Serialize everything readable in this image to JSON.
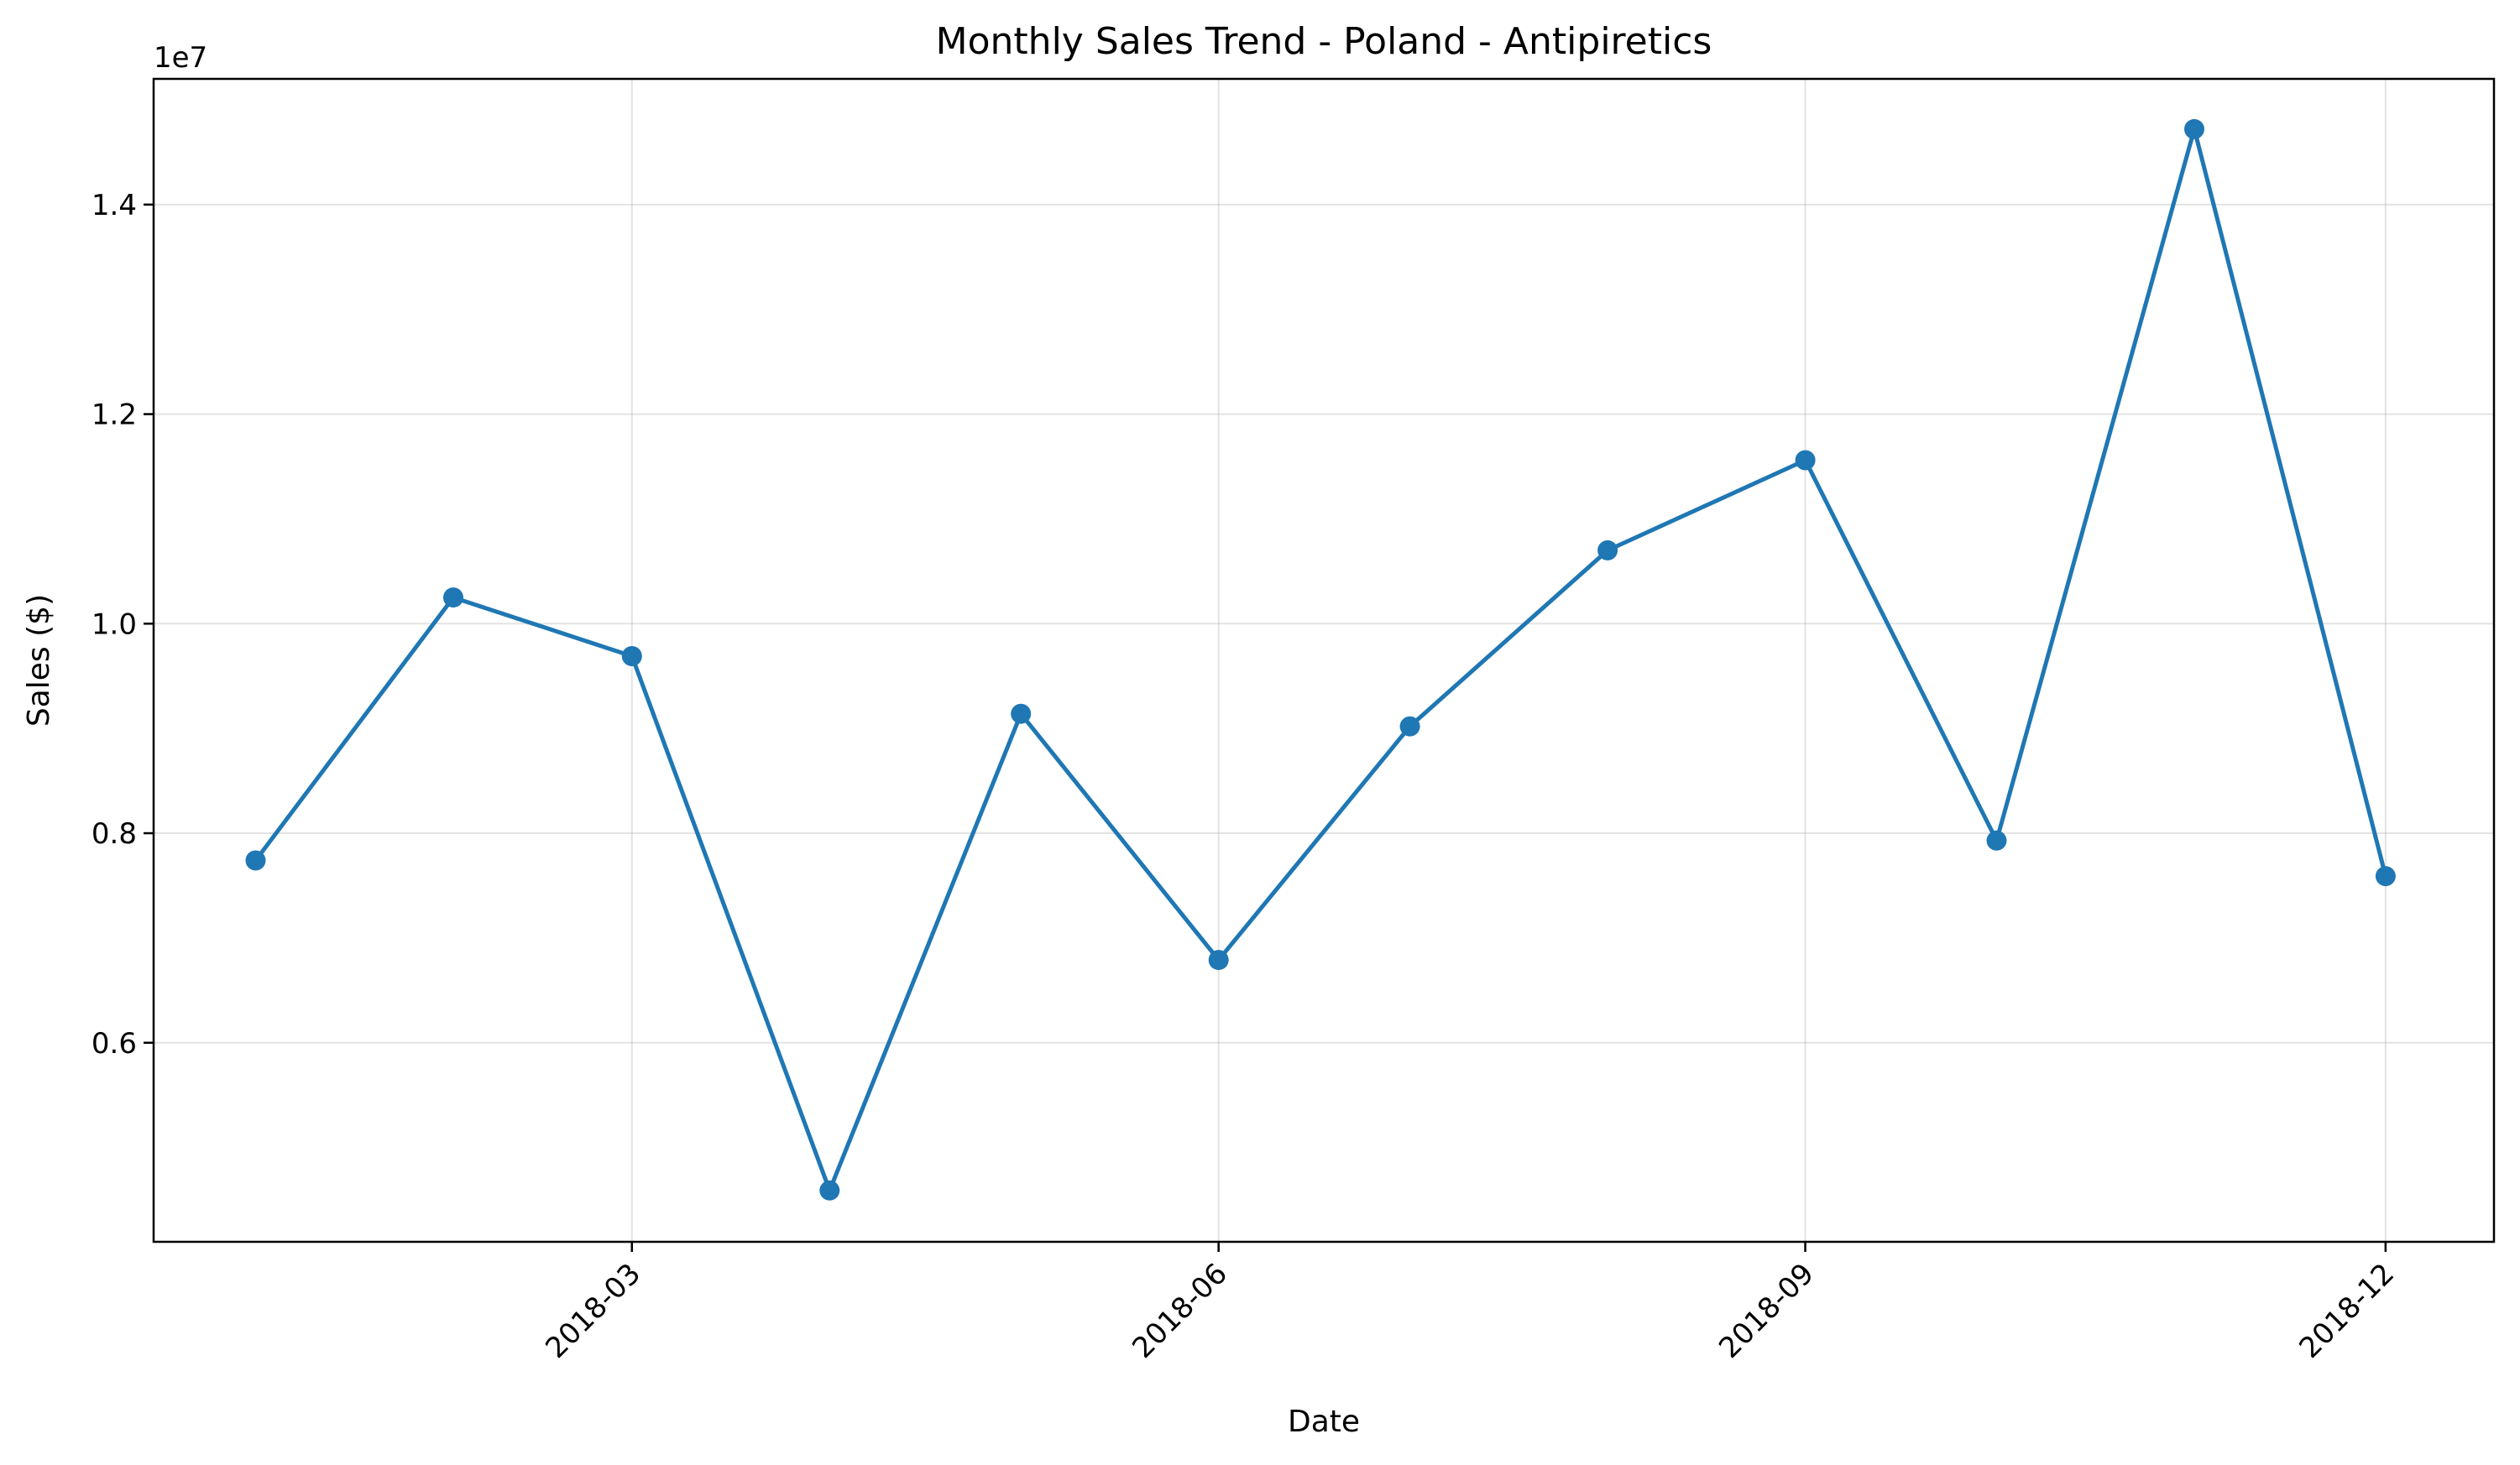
{
  "chart_data": {
    "type": "line",
    "title": "Monthly Sales Trend - Poland - Antipiretics",
    "xlabel": "Date",
    "ylabel": "Sales ($)",
    "y_offset_label": "1e7",
    "x": [
      "2018-01",
      "2018-02",
      "2018-03",
      "2018-04",
      "2018-05",
      "2018-06",
      "2018-07",
      "2018-08",
      "2018-09",
      "2018-10",
      "2018-11",
      "2018-12"
    ],
    "series": [
      {
        "values": [
          7740000,
          10250000,
          9690000,
          4590000,
          9140000,
          6790000,
          9020000,
          10700000,
          11560000,
          7930000,
          14720000,
          7590000
        ],
        "color": "#1f77b4"
      }
    ],
    "xlim": [
      "2017-12-16",
      "2018-12-18"
    ],
    "ylim": [
      4100000,
      15200000
    ],
    "x_ticks": [
      "2018-03",
      "2018-06",
      "2018-09",
      "2018-12"
    ],
    "y_ticks": [
      {
        "value": 6000000,
        "label": "0.6"
      },
      {
        "value": 8000000,
        "label": "0.8"
      },
      {
        "value": 10000000,
        "label": "1.0"
      },
      {
        "value": 12000000,
        "label": "1.2"
      },
      {
        "value": 14000000,
        "label": "1.4"
      }
    ],
    "grid": true,
    "legend": "none"
  }
}
